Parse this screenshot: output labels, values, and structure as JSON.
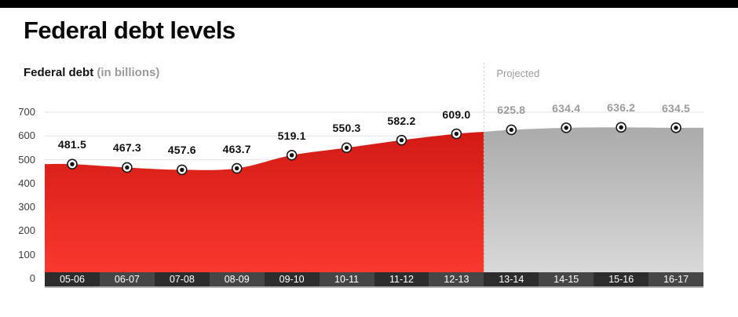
{
  "page": {
    "title": "Federal debt levels"
  },
  "subtitle": {
    "label": "Federal debt",
    "units": "(in billions)"
  },
  "chart_data": {
    "type": "area",
    "title": "Federal debt levels",
    "subtitle": "Federal debt (in billions)",
    "categories": [
      "05-06",
      "06-07",
      "07-08",
      "08-09",
      "09-10",
      "10-11",
      "11-12",
      "12-13",
      "13-14",
      "14-15",
      "15-16",
      "16-17"
    ],
    "series": [
      {
        "name": "Federal debt (actual)",
        "values": [
          481.5,
          467.3,
          457.6,
          463.7,
          519.1,
          550.3,
          582.2,
          609.0
        ],
        "start_index": 0,
        "fill_top": "#cd1611",
        "fill_bottom": "#f9382f",
        "label_color": "#111111"
      },
      {
        "name": "Federal debt (projected)",
        "values": [
          625.8,
          634.4,
          636.2,
          634.5
        ],
        "start_index": 8,
        "fill_top": "#a6a6a6",
        "fill_bottom": "#d9d9d9",
        "label_color": "#9b9b9b"
      }
    ],
    "projected_label": "Projected",
    "projected_start_index": 8,
    "xlabel": "",
    "ylabel": "",
    "ylim": [
      0,
      700
    ],
    "ytick_step": 100,
    "grid": true,
    "legend_position": "none"
  },
  "colors": {
    "grid": "#e2e2e2",
    "dashed_divider": "#c6c6c6",
    "axis_cell_dark": "#2d2d2d",
    "axis_cell_light": "#464646",
    "axis_underline": "#b3b3b3",
    "marker_center": "#111111",
    "marker_ring": "#ffffff",
    "marker_stroke": "#1a1a1a",
    "topbar": "#000000",
    "background": "#ffffff"
  }
}
